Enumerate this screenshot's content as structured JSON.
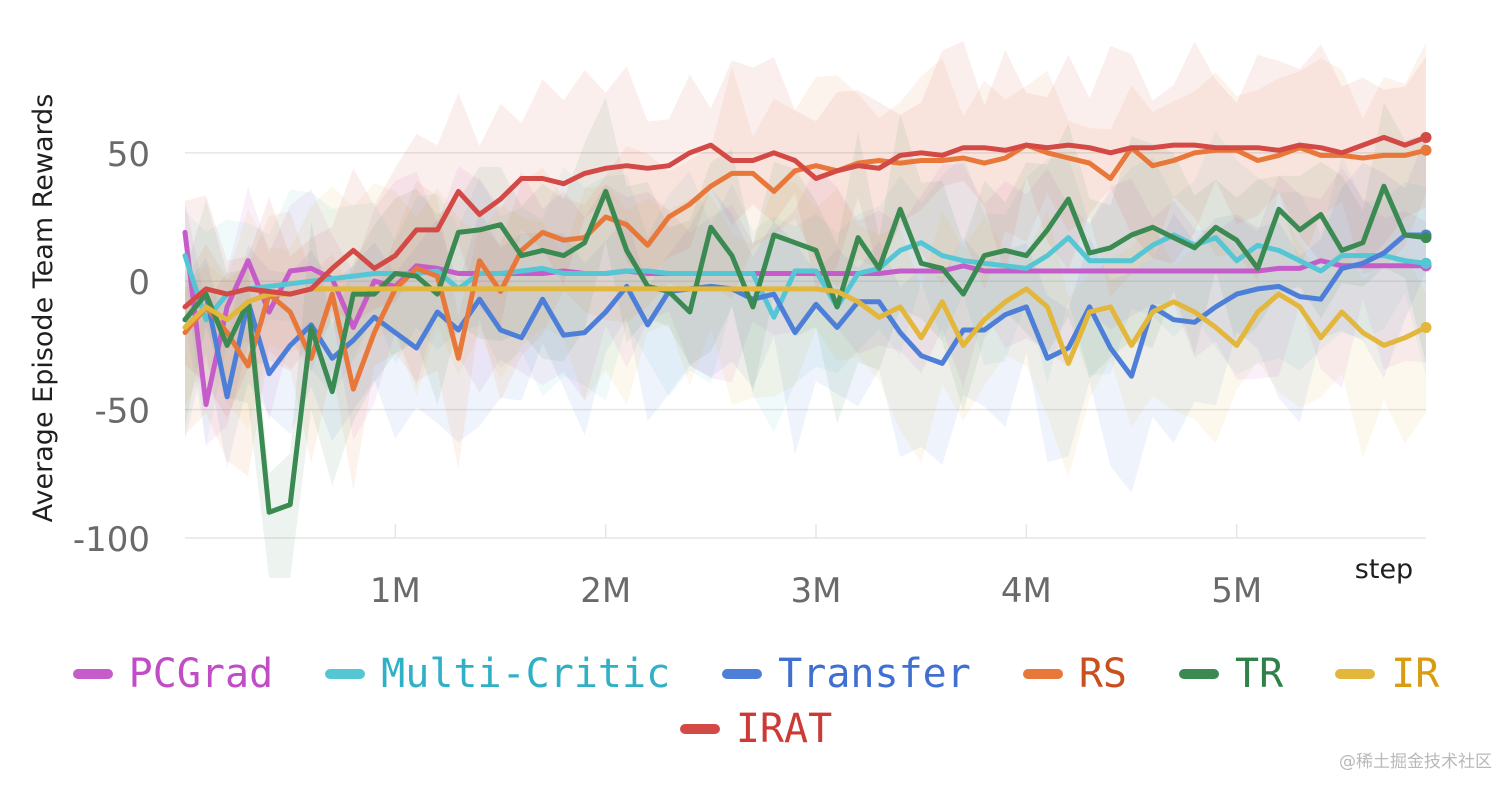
{
  "chart_data": {
    "type": "line",
    "title": "",
    "xlabel": "step",
    "ylabel": "Average Episode Team Rewards",
    "xlim": [
      0,
      5900000
    ],
    "ylim": [
      -100,
      92
    ],
    "xticks": [
      {
        "value": 1000000,
        "label": "1M"
      },
      {
        "value": 2000000,
        "label": "2M"
      },
      {
        "value": 3000000,
        "label": "3M"
      },
      {
        "value": 4000000,
        "label": "4M"
      },
      {
        "value": 5000000,
        "label": "5M"
      }
    ],
    "yticks": [
      {
        "value": 50,
        "label": "50"
      },
      {
        "value": 0,
        "label": "0"
      },
      {
        "value": -50,
        "label": "-50"
      },
      {
        "value": -100,
        "label": "-100"
      }
    ],
    "grid": true,
    "legend": "bottom",
    "x": [
      0,
      100000,
      200000,
      300000,
      400000,
      500000,
      600000,
      700000,
      800000,
      900000,
      1000000,
      1100000,
      1200000,
      1300000,
      1400000,
      1500000,
      1600000,
      1700000,
      1800000,
      1900000,
      2000000,
      2100000,
      2200000,
      2300000,
      2400000,
      2500000,
      2600000,
      2700000,
      2800000,
      2900000,
      3000000,
      3100000,
      3200000,
      3300000,
      3400000,
      3500000,
      3600000,
      3700000,
      3800000,
      3900000,
      4000000,
      4100000,
      4200000,
      4300000,
      4400000,
      4500000,
      4600000,
      4700000,
      4800000,
      4900000,
      5000000,
      5100000,
      5200000,
      5300000,
      5400000,
      5500000,
      5600000,
      5700000,
      5800000,
      5900000
    ],
    "series": [
      {
        "name": "PCGrad",
        "color": "#c55cc9",
        "values": [
          19,
          -48,
          -10,
          8,
          -12,
          4,
          5,
          1,
          -18,
          0,
          -2,
          6,
          5,
          3,
          3,
          3,
          3,
          3,
          4,
          3,
          3,
          4,
          3,
          3,
          3,
          3,
          3,
          3,
          3,
          3,
          3,
          3,
          3,
          3,
          4,
          4,
          4,
          6,
          4,
          4,
          4,
          4,
          4,
          4,
          4,
          4,
          4,
          4,
          4,
          4,
          4,
          4,
          5,
          5,
          8,
          6,
          6,
          6,
          6,
          6
        ]
      },
      {
        "name": "Multi-Critic",
        "color": "#55c6d4",
        "values": [
          10,
          -15,
          -5,
          -3,
          -2,
          -1,
          0,
          1,
          2,
          3,
          3,
          3,
          4,
          -3,
          3,
          3,
          4,
          5,
          3,
          3,
          3,
          4,
          4,
          3,
          3,
          3,
          3,
          3,
          -14,
          4,
          4,
          -10,
          3,
          5,
          12,
          15,
          10,
          8,
          7,
          6,
          5,
          10,
          17,
          8,
          8,
          8,
          14,
          18,
          14,
          17,
          8,
          14,
          12,
          8,
          4,
          10,
          10,
          10,
          8,
          7
        ]
      },
      {
        "name": "Transfer",
        "color": "#4e7fd8",
        "values": [
          -15,
          -5,
          -45,
          -8,
          -36,
          -25,
          -17,
          -30,
          -23,
          -14,
          -20,
          -26,
          -12,
          -19,
          -7,
          -19,
          -22,
          -7,
          -21,
          -20,
          -12,
          -2,
          -17,
          -4,
          -3,
          -2,
          -3,
          -7,
          -5,
          -20,
          -9,
          -18,
          -8,
          -8,
          -20,
          -29,
          -32,
          -19,
          -19,
          -13,
          -10,
          -30,
          -26,
          -10,
          -26,
          -37,
          -10,
          -15,
          -16,
          -10,
          -5,
          -3,
          -2,
          -6,
          -7,
          5,
          7,
          11,
          18,
          18
        ]
      },
      {
        "name": "RS",
        "color": "#e8773a",
        "values": [
          -20,
          -10,
          -20,
          -33,
          -5,
          -12,
          -30,
          -5,
          -42,
          -20,
          -3,
          5,
          2,
          -30,
          8,
          -4,
          12,
          19,
          16,
          17,
          25,
          22,
          14,
          25,
          30,
          37,
          42,
          42,
          35,
          43,
          45,
          43,
          46,
          47,
          46,
          47,
          47,
          48,
          46,
          48,
          53,
          50,
          48,
          46,
          40,
          52,
          45,
          47,
          50,
          51,
          51,
          47,
          49,
          52,
          49,
          49,
          48,
          49,
          49,
          51
        ]
      },
      {
        "name": "TR",
        "color": "#3a8a52",
        "values": [
          -15,
          -5,
          -25,
          -8,
          -90,
          -87,
          -18,
          -43,
          -5,
          -5,
          3,
          2,
          -5,
          19,
          20,
          22,
          10,
          12,
          10,
          15,
          35,
          12,
          -2,
          -4,
          -12,
          21,
          10,
          -10,
          18,
          15,
          12,
          -10,
          17,
          5,
          28,
          7,
          5,
          -5,
          10,
          12,
          10,
          20,
          32,
          11,
          13,
          18,
          21,
          17,
          13,
          21,
          16,
          5,
          28,
          20,
          26,
          12,
          15,
          37,
          18,
          17
        ]
      },
      {
        "name": "IR",
        "color": "#e3b63c",
        "values": [
          -18,
          -10,
          -15,
          -8,
          -5,
          -5,
          -3,
          -3,
          -3,
          -3,
          -3,
          -3,
          -3,
          -3,
          -3,
          -3,
          -3,
          -3,
          -3,
          -3,
          -3,
          -3,
          -3,
          -3,
          -3,
          -3,
          -3,
          -3,
          -3,
          -3,
          -3,
          -4,
          -8,
          -14,
          -10,
          -22,
          -8,
          -25,
          -15,
          -8,
          -3,
          -10,
          -32,
          -12,
          -10,
          -25,
          -12,
          -8,
          -12,
          -18,
          -25,
          -12,
          -5,
          -10,
          -22,
          -12,
          -20,
          -25,
          -22,
          -18
        ]
      },
      {
        "name": "IRAT",
        "color": "#d34945",
        "values": [
          -10,
          -3,
          -5,
          -3,
          -4,
          -5,
          -3,
          5,
          12,
          5,
          10,
          20,
          20,
          35,
          26,
          32,
          40,
          40,
          38,
          42,
          44,
          45,
          44,
          45,
          50,
          53,
          47,
          47,
          50,
          47,
          40,
          43,
          45,
          44,
          49,
          50,
          49,
          52,
          52,
          51,
          53,
          52,
          53,
          52,
          50,
          52,
          52,
          53,
          53,
          52,
          52,
          52,
          51,
          53,
          52,
          50,
          53,
          56,
          53,
          56
        ]
      }
    ]
  },
  "legend": {
    "row1": [
      "PCGrad",
      "Multi-Critic",
      "Transfer",
      "RS",
      "TR",
      "IR"
    ],
    "row2": [
      "IRAT"
    ],
    "label_colors": {
      "PCGrad": "#c04cc6",
      "Multi-Critic": "#2fb0c4",
      "Transfer": "#3f6fd0",
      "RS": "#c94f1e",
      "TR": "#2f8049",
      "IR": "#d99c10",
      "IRAT": "#cc3a36"
    }
  },
  "watermark": "@稀土掘金技术社区"
}
